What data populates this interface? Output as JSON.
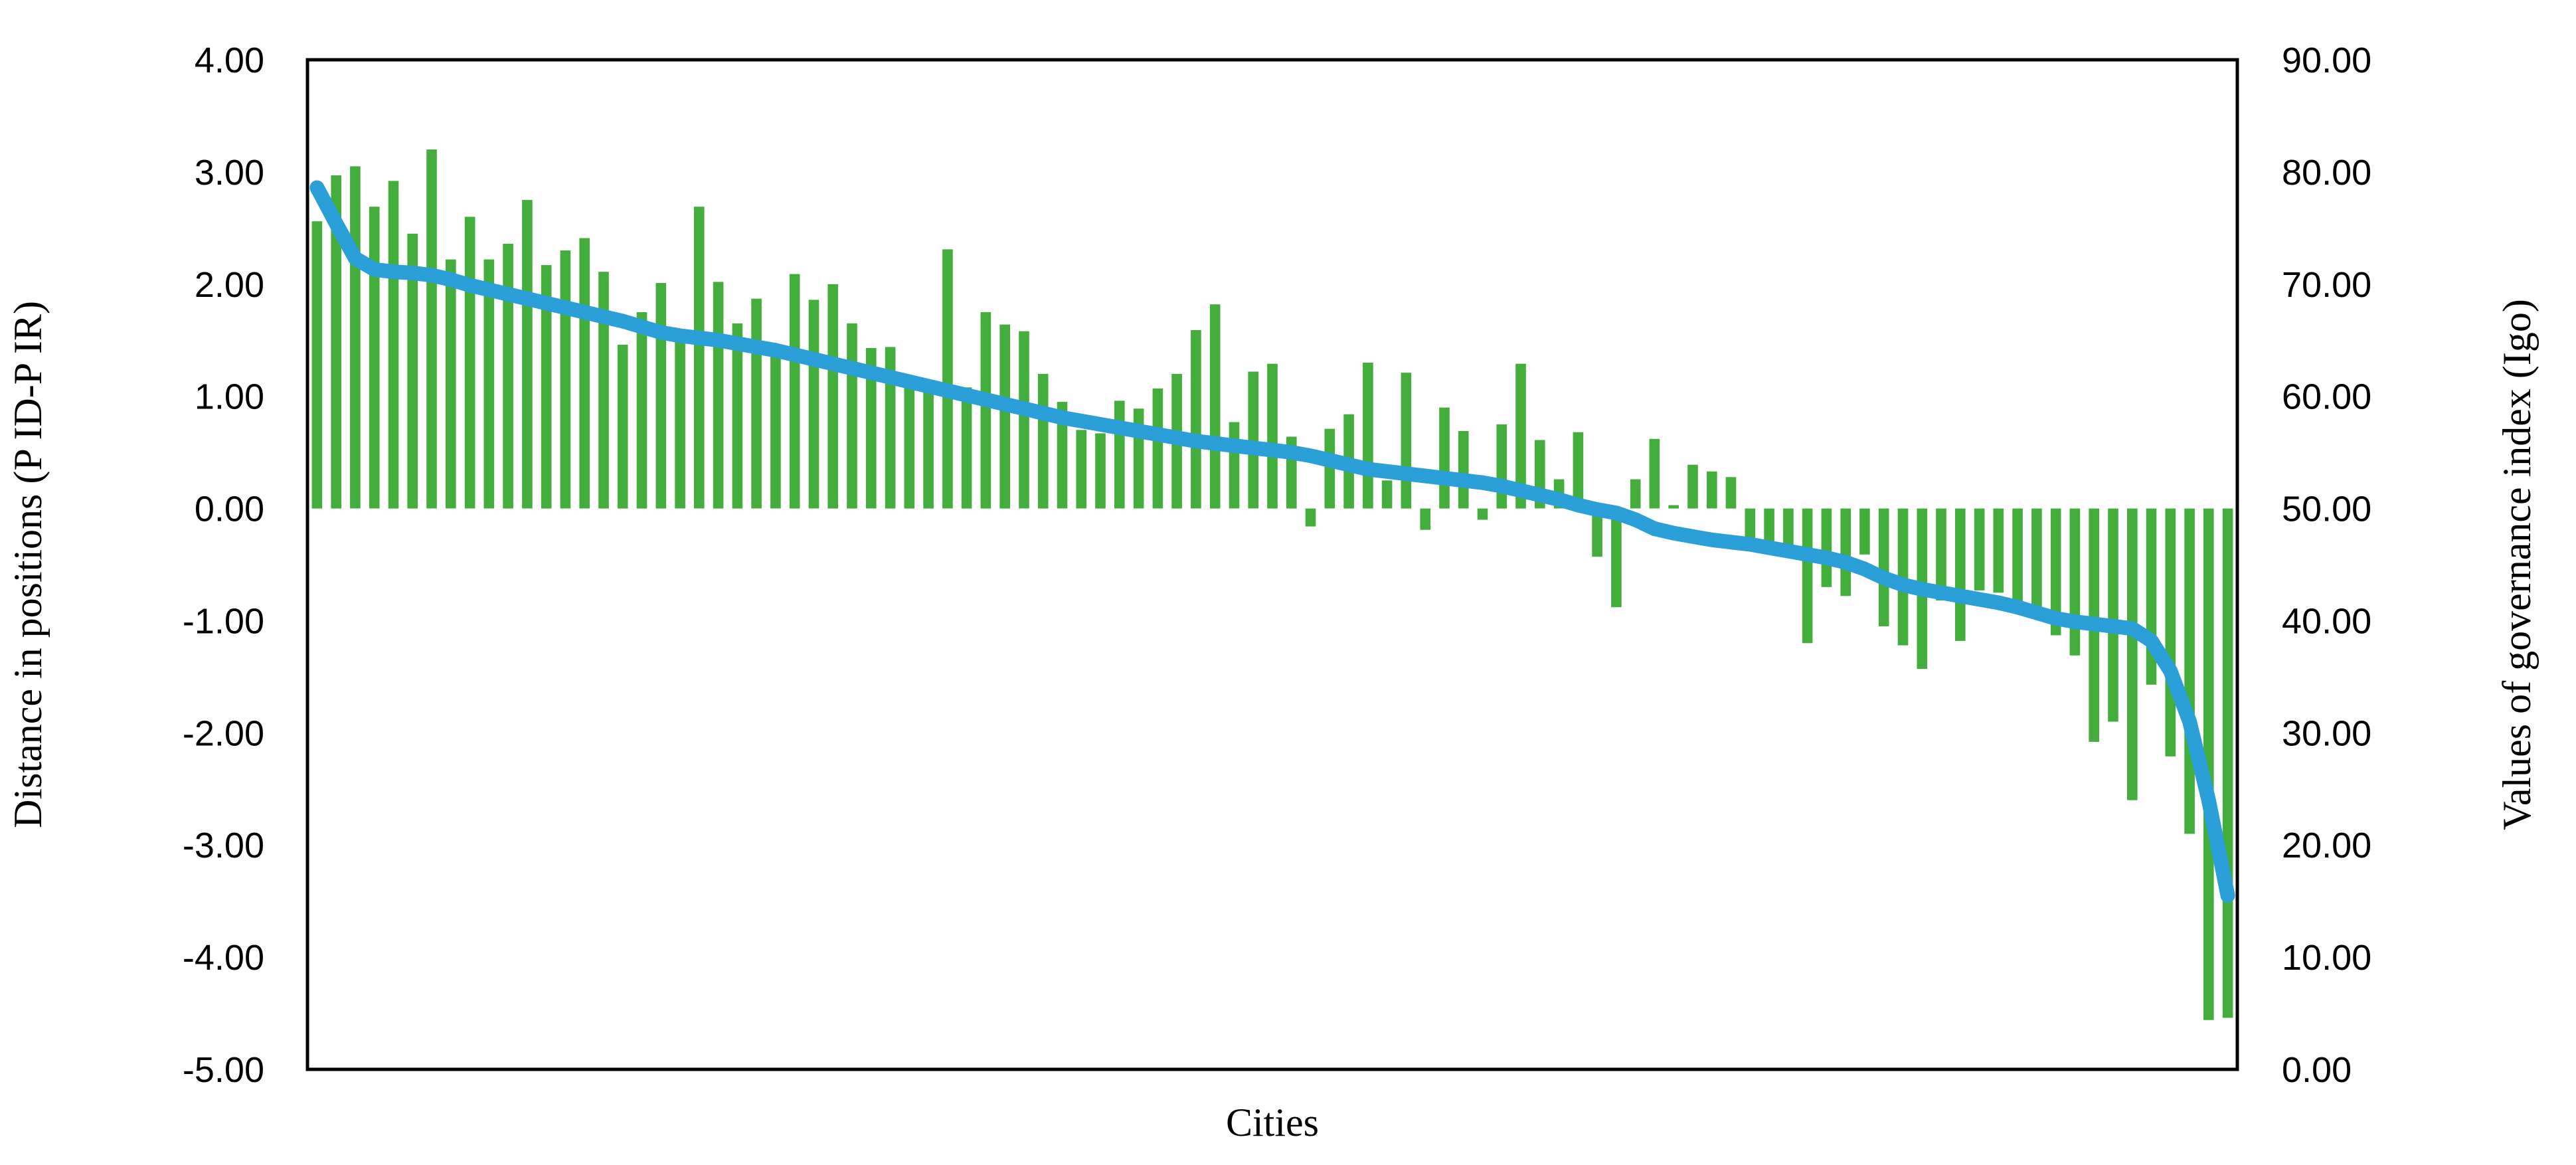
{
  "chart_data": {
    "type": "bar",
    "subtype": "combo-bar-line-dual-axis",
    "title": "",
    "xlabel": "Cities",
    "n_points": 101,
    "grid": false,
    "legend_visible": false,
    "background_color": "#FFFFFF",
    "plot_border_color": "#000000",
    "left_axis": {
      "title": "Distance in positions (P ID-P IR)",
      "min": -5,
      "max": 4,
      "tick_step": 1,
      "tick_labels": [
        "4.00",
        "3.00",
        "2.00",
        "1.00",
        "0.00",
        "-1.00",
        "-2.00",
        "-3.00",
        "-4.00",
        "-5.00"
      ]
    },
    "right_axis": {
      "title": "Values of governance index (Igo)",
      "min": 0,
      "max": 90,
      "tick_step": 10,
      "tick_labels": [
        "90.00",
        "80.00",
        "70.00",
        "60.00",
        "50.00",
        "40.00",
        "30.00",
        "20.00",
        "10.00",
        "0.00"
      ]
    },
    "series": [
      {
        "name": "distance-in-positions-bars",
        "type": "bar",
        "axis": "left",
        "color": "#43AE3C",
        "values": [
          2.56,
          2.97,
          3.05,
          2.69,
          2.92,
          2.45,
          3.2,
          2.22,
          2.6,
          2.22,
          2.36,
          2.75,
          2.17,
          2.3,
          2.41,
          2.11,
          1.46,
          1.75,
          2.01,
          1.6,
          2.69,
          2.02,
          1.65,
          1.87,
          1.41,
          2.09,
          1.86,
          2.0,
          1.65,
          1.43,
          1.44,
          1.09,
          1.11,
          2.31,
          1.08,
          1.75,
          1.64,
          1.58,
          1.2,
          0.95,
          0.7,
          0.67,
          0.96,
          0.89,
          1.07,
          1.2,
          1.59,
          1.82,
          0.77,
          1.22,
          1.29,
          0.64,
          -0.16,
          0.71,
          0.84,
          1.3,
          0.25,
          1.21,
          -0.19,
          0.9,
          0.69,
          -0.1,
          0.75,
          1.29,
          0.61,
          0.26,
          0.68,
          -0.43,
          -0.88,
          0.26,
          0.62,
          0.03,
          0.39,
          0.33,
          0.28,
          -0.27,
          -0.31,
          -0.35,
          -1.2,
          -0.7,
          -0.78,
          -0.41,
          -1.05,
          -1.22,
          -1.43,
          -0.82,
          -1.18,
          -0.73,
          -0.75,
          -0.89,
          -0.92,
          -1.13,
          -1.31,
          -2.08,
          -1.9,
          -2.6,
          -1.57,
          -2.21,
          -2.9,
          -4.56,
          -4.54
        ]
      },
      {
        "name": "governance-index-line",
        "type": "line",
        "axis": "right",
        "color": "#2B9FD7",
        "values": [
          78.6,
          75.4,
          72.3,
          71.3,
          71.1,
          71.0,
          70.8,
          70.4,
          69.9,
          69.5,
          69.1,
          68.7,
          68.3,
          67.9,
          67.5,
          67.1,
          66.7,
          66.2,
          65.7,
          65.4,
          65.2,
          65.0,
          64.7,
          64.4,
          64.1,
          63.7,
          63.3,
          62.9,
          62.5,
          62.1,
          61.7,
          61.3,
          60.9,
          60.5,
          60.1,
          59.7,
          59.3,
          58.9,
          58.5,
          58.1,
          57.8,
          57.5,
          57.2,
          56.9,
          56.6,
          56.3,
          56.0,
          55.8,
          55.6,
          55.4,
          55.2,
          55.0,
          54.7,
          54.3,
          53.9,
          53.5,
          53.3,
          53.1,
          52.9,
          52.7,
          52.5,
          52.3,
          52.0,
          51.6,
          51.2,
          50.8,
          50.3,
          49.9,
          49.6,
          49.0,
          48.2,
          47.8,
          47.5,
          47.2,
          47.0,
          46.8,
          46.5,
          46.2,
          45.9,
          45.6,
          45.2,
          44.6,
          43.8,
          43.2,
          42.8,
          42.5,
          42.2,
          41.9,
          41.6,
          41.2,
          40.7,
          40.2,
          39.9,
          39.7,
          39.5,
          39.3,
          38.2,
          35.5,
          31.0,
          24.0,
          15.5
        ]
      }
    ]
  }
}
